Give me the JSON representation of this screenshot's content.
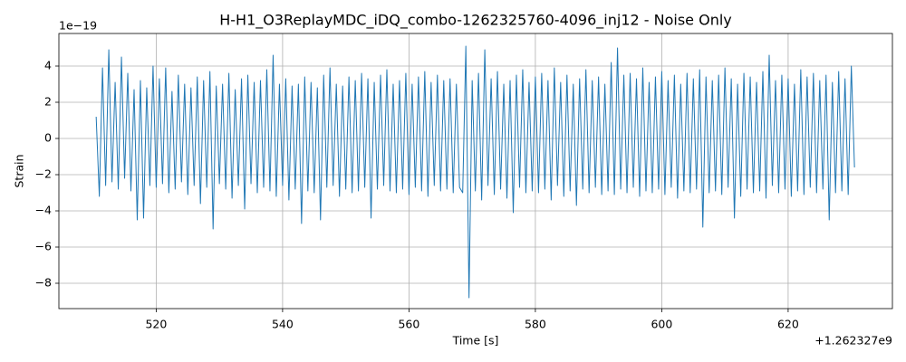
{
  "chart_data": {
    "type": "line",
    "title": "H-H1_O3ReplayMDC_iDQ_combo-1262325760-4096_inj12 - Noise Only",
    "xlabel": "Time [s]",
    "ylabel": "Strain",
    "x_offset_label": "+1.262327e9",
    "y_offset_label": "1e−19",
    "grid": true,
    "xlim": [
      504.6,
      636.5
    ],
    "ylim": [
      -9.4,
      5.8
    ],
    "xticks": [
      520,
      540,
      560,
      580,
      600,
      620
    ],
    "yticks": [
      {
        "value": -8,
        "label": "−8"
      },
      {
        "value": -6,
        "label": "−6"
      },
      {
        "value": -4,
        "label": "−4"
      },
      {
        "value": -2,
        "label": "−2"
      },
      0,
      2,
      4
    ],
    "x": [
      510.5,
      511,
      511.5,
      512,
      512.5,
      513,
      513.5,
      514,
      514.5,
      515,
      515.5,
      516,
      516.5,
      517,
      517.5,
      518,
      518.5,
      519,
      519.5,
      520,
      520.5,
      521,
      521.5,
      522,
      522.5,
      523,
      523.5,
      524,
      524.5,
      525,
      525.5,
      526,
      526.5,
      527,
      527.5,
      528,
      528.5,
      529,
      529.5,
      530,
      530.5,
      531,
      531.5,
      532,
      532.5,
      533,
      533.5,
      534,
      534.5,
      535,
      535.5,
      536,
      536.5,
      537,
      537.5,
      538,
      538.5,
      539,
      539.5,
      540,
      540.5,
      541,
      541.5,
      542,
      542.5,
      543,
      543.5,
      544,
      544.5,
      545,
      545.5,
      546,
      546.5,
      547,
      547.5,
      548,
      548.5,
      549,
      549.5,
      550,
      550.5,
      551,
      551.5,
      552,
      552.5,
      553,
      553.5,
      554,
      554.5,
      555,
      555.5,
      556,
      556.5,
      557,
      557.5,
      558,
      558.5,
      559,
      559.5,
      560,
      560.5,
      561,
      561.5,
      562,
      562.5,
      563,
      563.5,
      564,
      564.5,
      565,
      565.5,
      566,
      566.5,
      567,
      567.5,
      568,
      568.5,
      569,
      569.5,
      570,
      570.5,
      571,
      571.5,
      572,
      572.5,
      573,
      573.5,
      574,
      574.5,
      575,
      575.5,
      576,
      576.5,
      577,
      577.5,
      578,
      578.5,
      579,
      579.5,
      580,
      580.5,
      581,
      581.5,
      582,
      582.5,
      583,
      583.5,
      584,
      584.5,
      585,
      585.5,
      586,
      586.5,
      587,
      587.5,
      588,
      588.5,
      589,
      589.5,
      590,
      590.5,
      591,
      591.5,
      592,
      592.5,
      593,
      593.5,
      594,
      594.5,
      595,
      595.5,
      596,
      596.5,
      597,
      597.5,
      598,
      598.5,
      599,
      599.5,
      600,
      600.5,
      601,
      601.5,
      602,
      602.5,
      603,
      603.5,
      604,
      604.5,
      605,
      605.5,
      606,
      606.5,
      607,
      607.5,
      608,
      608.5,
      609,
      609.5,
      610,
      610.5,
      611,
      611.5,
      612,
      612.5,
      613,
      613.5,
      614,
      614.5,
      615,
      615.5,
      616,
      616.5,
      617,
      617.5,
      618,
      618.5,
      619,
      619.5,
      620,
      620.5,
      621,
      621.5,
      622,
      622.5,
      623,
      623.5,
      624,
      624.5,
      625,
      625.5,
      626,
      626.5,
      627,
      627.5,
      628,
      628.5,
      629,
      629.5,
      630,
      630.5
    ],
    "series": [
      {
        "name": "Strain",
        "color": "#1f77b4",
        "values": [
          1.2,
          -3.2,
          3.9,
          -2.6,
          4.9,
          -2.4,
          3.1,
          -2.8,
          4.5,
          -2.2,
          3.6,
          -2.9,
          2.7,
          -4.5,
          3.2,
          -4.4,
          2.8,
          -2.6,
          4.0,
          -2.7,
          3.3,
          -2.5,
          3.9,
          -3.0,
          2.6,
          -2.8,
          3.5,
          -2.4,
          3.0,
          -3.1,
          2.8,
          -2.6,
          3.4,
          -3.6,
          3.2,
          -2.7,
          3.7,
          -5.0,
          2.9,
          -2.5,
          3.0,
          -2.8,
          3.6,
          -3.3,
          2.7,
          -2.6,
          3.3,
          -3.9,
          3.5,
          -2.5,
          3.1,
          -3.0,
          3.2,
          -2.7,
          3.8,
          -2.9,
          4.6,
          -3.2,
          3.0,
          -2.6,
          3.3,
          -3.4,
          2.9,
          -2.8,
          3.0,
          -4.7,
          3.4,
          -2.9,
          3.1,
          -3.0,
          2.8,
          -4.5,
          3.5,
          -2.7,
          3.9,
          -2.6,
          3.0,
          -3.2,
          2.9,
          -2.8,
          3.4,
          -3.0,
          3.2,
          -2.9,
          3.6,
          -2.7,
          3.3,
          -4.4,
          3.1,
          -2.8,
          3.5,
          -2.6,
          3.8,
          -2.9,
          3.0,
          -3.0,
          3.2,
          -2.8,
          3.6,
          -3.1,
          3.0,
          -2.7,
          3.4,
          -2.9,
          3.7,
          -3.2,
          3.1,
          -2.6,
          3.5,
          -2.9,
          3.2,
          -2.8,
          3.3,
          -3.0,
          3.0,
          -2.7,
          -3.0,
          5.1,
          -8.8,
          3.2,
          -2.9,
          3.6,
          -3.4,
          4.9,
          -2.6,
          3.3,
          -3.1,
          3.7,
          -2.8,
          3.0,
          -3.3,
          3.2,
          -4.1,
          3.5,
          -2.7,
          3.8,
          -3.0,
          3.1,
          -2.9,
          3.4,
          -3.0,
          3.6,
          -2.8,
          3.2,
          -3.4,
          3.9,
          -2.6,
          3.1,
          -3.2,
          3.5,
          -2.9,
          3.0,
          -3.7,
          3.3,
          -2.8,
          3.8,
          -3.0,
          3.2,
          -2.7,
          3.4,
          -3.1,
          3.0,
          -2.9,
          4.2,
          -3.1,
          5.0,
          -2.8,
          3.5,
          -3.0,
          3.6,
          -2.7,
          3.3,
          -3.2,
          3.9,
          -2.9,
          3.1,
          -3.0,
          3.4,
          -2.8,
          3.7,
          -3.1,
          3.2,
          -2.7,
          3.5,
          -3.3,
          3.0,
          -2.9,
          3.6,
          -3.0,
          3.3,
          -2.8,
          3.8,
          -4.9,
          3.4,
          -3.0,
          3.2,
          -2.9,
          3.5,
          -3.1,
          3.9,
          -2.7,
          3.3,
          -4.4,
          3.0,
          -3.2,
          3.6,
          -2.8,
          3.4,
          -3.0,
          3.1,
          -2.9,
          3.7,
          -3.3,
          4.6,
          -2.6,
          3.2,
          -3.0,
          3.5,
          -2.8,
          3.3,
          -3.2,
          3.0,
          -2.9,
          3.8,
          -3.1,
          3.4,
          -2.7,
          3.6,
          -3.0,
          3.2,
          -2.8,
          3.5,
          -4.5,
          3.1,
          -3.0,
          3.7,
          -2.9,
          3.3,
          -3.1,
          4.0,
          -1.6
        ]
      }
    ]
  }
}
